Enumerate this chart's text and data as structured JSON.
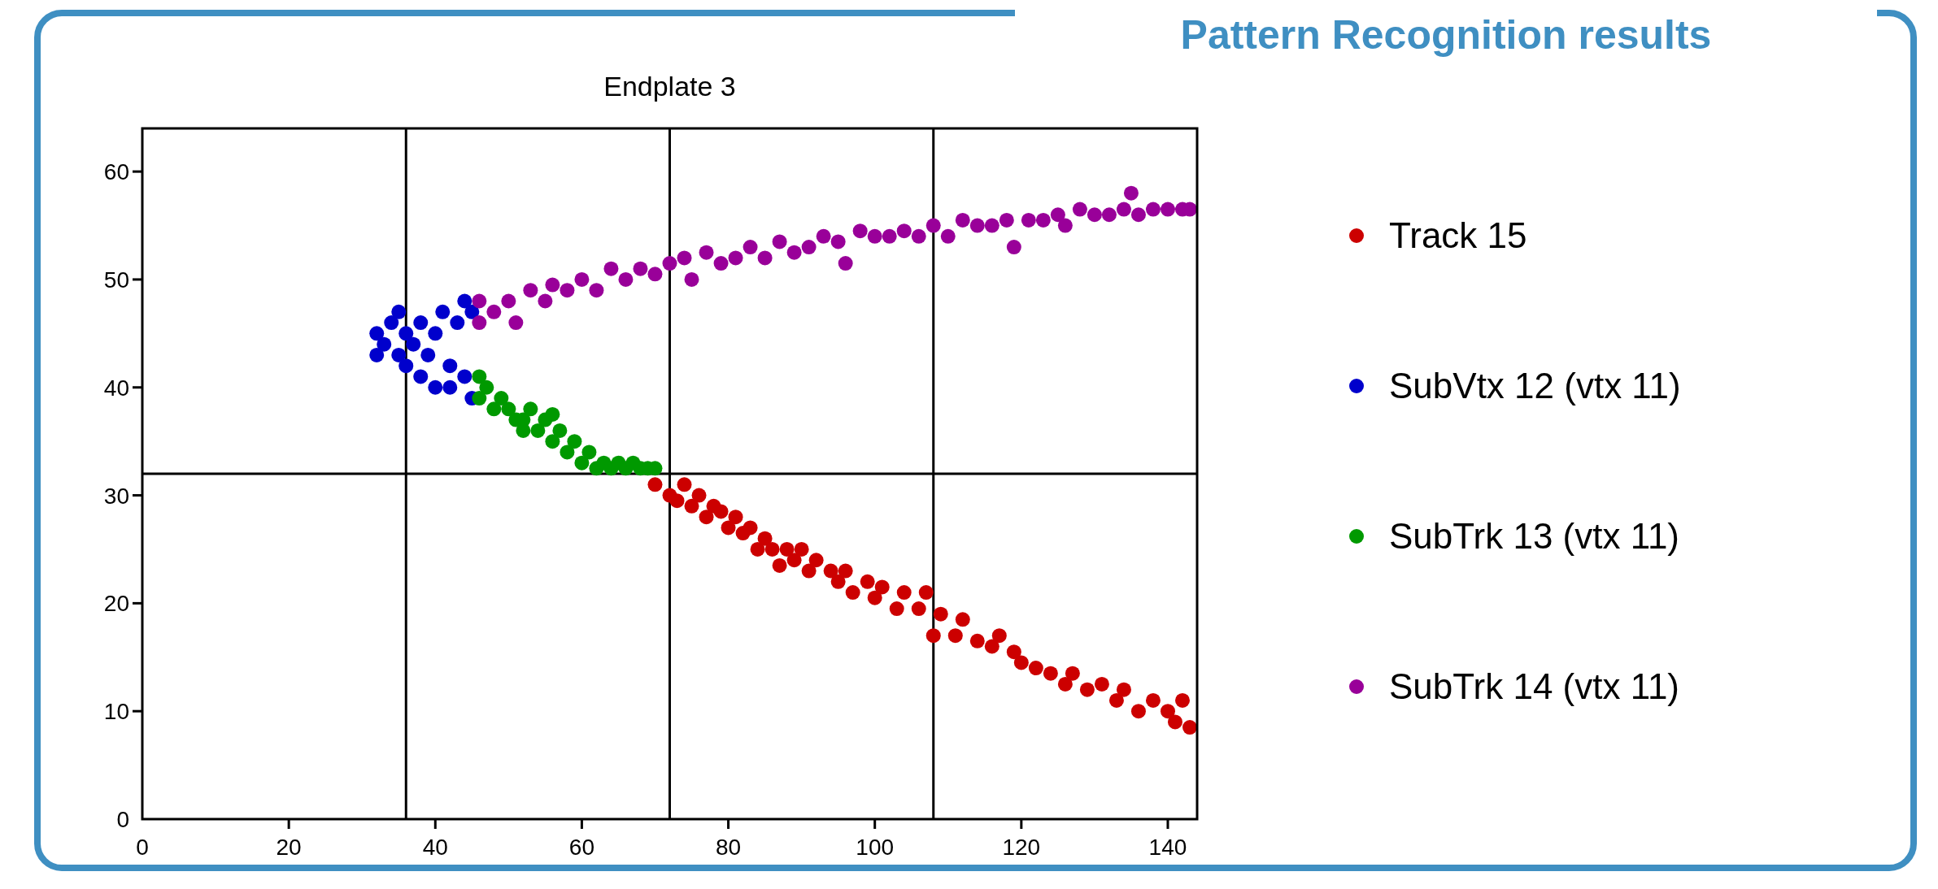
{
  "chart_data": {
    "type": "scatter",
    "title": "Pattern Recognition results",
    "subtitle": "Endplate 3",
    "xlim": [
      0,
      144
    ],
    "ylim": [
      0,
      64
    ],
    "xticks": [
      0,
      20,
      40,
      60,
      80,
      100,
      120,
      140
    ],
    "yticks": [
      0,
      10,
      20,
      30,
      40,
      50,
      60
    ],
    "legend": "right",
    "marker": "circle",
    "ref_lines": [
      {
        "axis": "x",
        "value": 36
      },
      {
        "axis": "x",
        "value": 72
      },
      {
        "axis": "x",
        "value": 108
      },
      {
        "axis": "y",
        "value": 32
      }
    ],
    "series": [
      {
        "name": "Track 15",
        "color": "#cc0000",
        "x": [
          70,
          72,
          73,
          74,
          75,
          76,
          77,
          78,
          79,
          80,
          81,
          82,
          83,
          84,
          85,
          86,
          87,
          88,
          89,
          90,
          91,
          92,
          94,
          95,
          96,
          97,
          99,
          100,
          101,
          103,
          104,
          106,
          107,
          108,
          109,
          111,
          112,
          114,
          116,
          117,
          119,
          120,
          122,
          124,
          126,
          127,
          129,
          131,
          133,
          134,
          136,
          138,
          140,
          141,
          142,
          143
        ],
        "values": [
          31,
          30,
          29.5,
          31,
          29,
          30,
          28,
          29,
          28.5,
          27,
          28,
          26.5,
          27,
          25,
          26,
          25,
          23.5,
          25,
          24,
          25,
          23,
          24,
          23,
          22,
          23,
          21,
          22,
          20.5,
          21.5,
          19.5,
          21,
          19.5,
          21,
          17,
          19,
          17,
          18.5,
          16.5,
          16,
          17,
          15.5,
          14.5,
          14,
          13.5,
          12.5,
          13.5,
          12,
          12.5,
          11,
          12,
          10,
          11,
          10,
          9,
          11,
          8.5
        ]
      },
      {
        "name": "SubVtx 12 (vtx 11)",
        "color": "#0000cc",
        "x": [
          32,
          32,
          33,
          34,
          35,
          35,
          36,
          36,
          37,
          38,
          38,
          39,
          40,
          40,
          41,
          42,
          42,
          43,
          44,
          44,
          45,
          45
        ],
        "values": [
          43,
          45,
          44,
          46,
          47,
          43,
          45,
          42,
          44,
          41,
          46,
          43,
          40,
          45,
          47,
          42,
          40,
          46,
          48,
          41,
          39,
          47
        ]
      },
      {
        "name": "SubTrk 13 (vtx 11)",
        "color": "#009900",
        "x": [
          46,
          46,
          47,
          48,
          49,
          50,
          51,
          52,
          52,
          53,
          54,
          55,
          56,
          56,
          57,
          58,
          59,
          60,
          61,
          62,
          63,
          64,
          65,
          66,
          67,
          68,
          69,
          70
        ],
        "values": [
          41,
          39,
          40,
          38,
          39,
          38,
          37,
          37,
          36,
          38,
          36,
          37,
          35,
          37.5,
          36,
          34,
          35,
          33,
          34,
          32.5,
          33,
          32.5,
          33,
          32.5,
          33,
          32.5,
          32.5,
          32.5
        ]
      },
      {
        "name": "SubTrk 14 (vtx 11)",
        "color": "#990099",
        "x": [
          46,
          46,
          48,
          50,
          51,
          53,
          55,
          56,
          58,
          60,
          62,
          64,
          66,
          68,
          70,
          72,
          74,
          75,
          77,
          79,
          81,
          83,
          85,
          87,
          89,
          91,
          93,
          95,
          96,
          98,
          100,
          102,
          104,
          106,
          108,
          110,
          112,
          114,
          116,
          118,
          119,
          121,
          123,
          125,
          126,
          128,
          130,
          132,
          134,
          135,
          136,
          138,
          140,
          142,
          143
        ],
        "values": [
          46,
          48,
          47,
          48,
          46,
          49,
          48,
          49.5,
          49,
          50,
          49,
          51,
          50,
          51,
          50.5,
          51.5,
          52,
          50,
          52.5,
          51.5,
          52,
          53,
          52,
          53.5,
          52.5,
          53,
          54,
          53.5,
          51.5,
          54.5,
          54,
          54,
          54.5,
          54,
          55,
          54,
          55.5,
          55,
          55,
          55.5,
          53,
          55.5,
          55.5,
          56,
          55,
          56.5,
          56,
          56,
          56.5,
          58,
          56,
          56.5,
          56.5,
          56.5,
          56.5
        ]
      }
    ]
  }
}
